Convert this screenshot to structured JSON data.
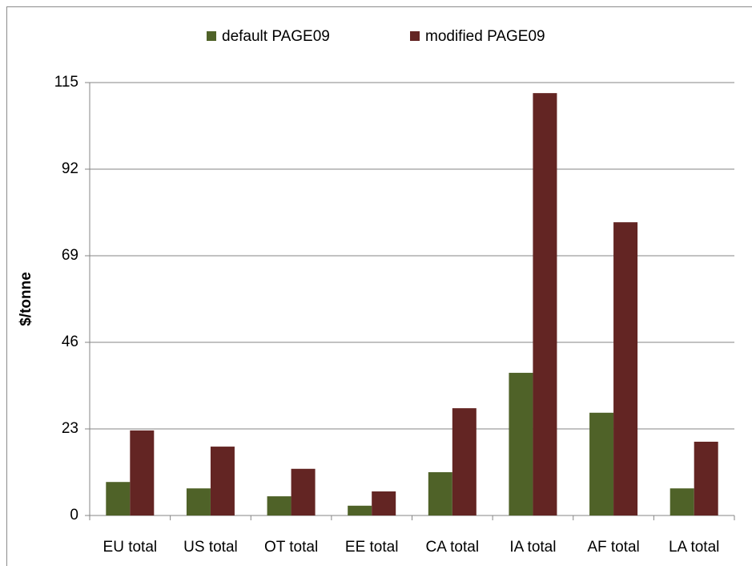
{
  "chart_data": {
    "type": "bar",
    "y_label": "$/tonne",
    "categories": [
      "EU total",
      "US total",
      "OT total",
      "EE total",
      "CA total",
      "IA total",
      "AF total",
      "LA total"
    ],
    "series": [
      {
        "name": "default PAGE09",
        "color": "#4f6228",
        "values": [
          8.9,
          7.2,
          5.1,
          2.6,
          11.5,
          37.9,
          27.3,
          7.2
        ]
      },
      {
        "name": "modified PAGE09",
        "color": "#632523",
        "values": [
          22.6,
          18.3,
          12.4,
          6.4,
          28.5,
          112.2,
          77.9,
          19.6
        ]
      }
    ],
    "ylim": [
      0,
      115
    ],
    "yticks": [
      0,
      23,
      46,
      69,
      92,
      115
    ],
    "grid": true,
    "legend": "top"
  }
}
